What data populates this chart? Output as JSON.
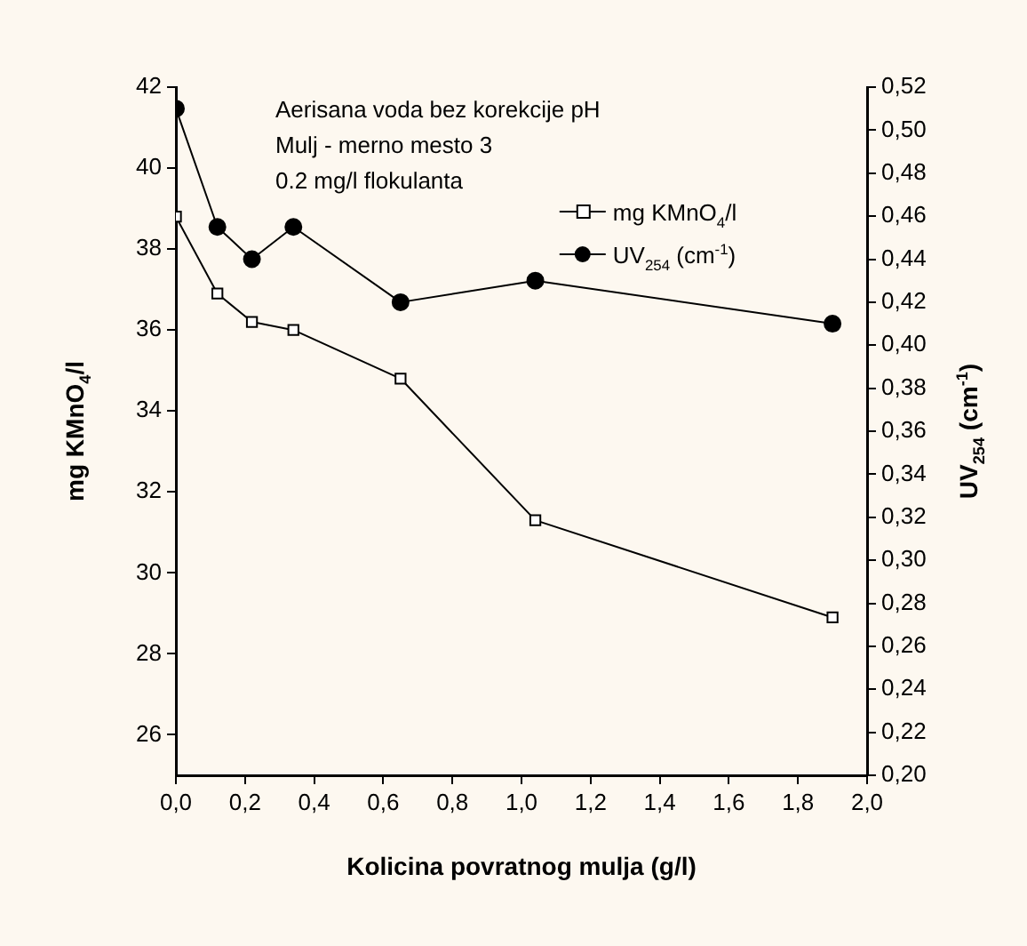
{
  "chart_data": {
    "type": "line",
    "xlabel": "Kolicina povratnog mulja (g/l)",
    "ylabel": "mg KMnO$_{4}$/l",
    "y2label": "UV$_{254}$ (cm$^{-1}$)",
    "annotations": [
      "Aerisana voda bez korekcije pH",
      "Mulj - merno mesto 3",
      "0.2 mg/l flokulanta"
    ],
    "x": [
      0,
      0.12,
      0.22,
      0.34,
      0.65,
      1.04,
      1.9
    ],
    "series": [
      {
        "name": "mg KMnO$_{4}$/l",
        "color": "#000000",
        "marker": "square",
        "values": [
          38.8,
          36.9,
          36.2,
          36.0,
          34.8,
          31.3,
          28.9
        ]
      },
      {
        "name": "UV$_{254}$ (cm$^{-1}$)",
        "color": "#000000",
        "marker": "circle",
        "axis": "y2",
        "values": [
          0.51,
          0.455,
          0.44,
          0.455,
          0.42,
          0.43,
          0.41
        ]
      }
    ],
    "xlim": [
      0,
      2.0
    ],
    "xticks": [
      {
        "value": 0,
        "label": "0,0"
      },
      {
        "value": 0.2,
        "label": "0,2"
      },
      {
        "value": 0.4,
        "label": "0,4"
      },
      {
        "value": 0.6,
        "label": "0,6"
      },
      {
        "value": 0.8,
        "label": "0,8"
      },
      {
        "value": 1.0,
        "label": "1,0"
      },
      {
        "value": 1.2,
        "label": "1,2"
      },
      {
        "value": 1.4,
        "label": "1,4"
      },
      {
        "value": 1.6,
        "label": "1,6"
      },
      {
        "value": 1.8,
        "label": "1,8"
      },
      {
        "value": 2.0,
        "label": "2,0"
      }
    ],
    "ylim": [
      25,
      42
    ],
    "yticks": [
      26,
      28,
      30,
      32,
      34,
      36,
      38,
      40,
      42
    ],
    "y2lim": [
      0.2,
      0.52
    ],
    "y2ticks": [
      {
        "value": 0.2,
        "label": "0,20"
      },
      {
        "value": 0.22,
        "label": "0,22"
      },
      {
        "value": 0.24,
        "label": "0,24"
      },
      {
        "value": 0.26,
        "label": "0,26"
      },
      {
        "value": 0.28,
        "label": "0,28"
      },
      {
        "value": 0.3,
        "label": "0,30"
      },
      {
        "value": 0.32,
        "label": "0,32"
      },
      {
        "value": 0.34,
        "label": "0,34"
      },
      {
        "value": 0.36,
        "label": "0,36"
      },
      {
        "value": 0.38,
        "label": "0,38"
      },
      {
        "value": 0.4,
        "label": "0,40"
      },
      {
        "value": 0.42,
        "label": "0,42"
      },
      {
        "value": 0.44,
        "label": "0,44"
      },
      {
        "value": 0.46,
        "label": "0,46"
      },
      {
        "value": 0.48,
        "label": "0,48"
      },
      {
        "value": 0.5,
        "label": "0,50"
      },
      {
        "value": 0.52,
        "label": "0,52"
      }
    ],
    "grid": false,
    "legend": "top right",
    "line_style": "solid"
  }
}
